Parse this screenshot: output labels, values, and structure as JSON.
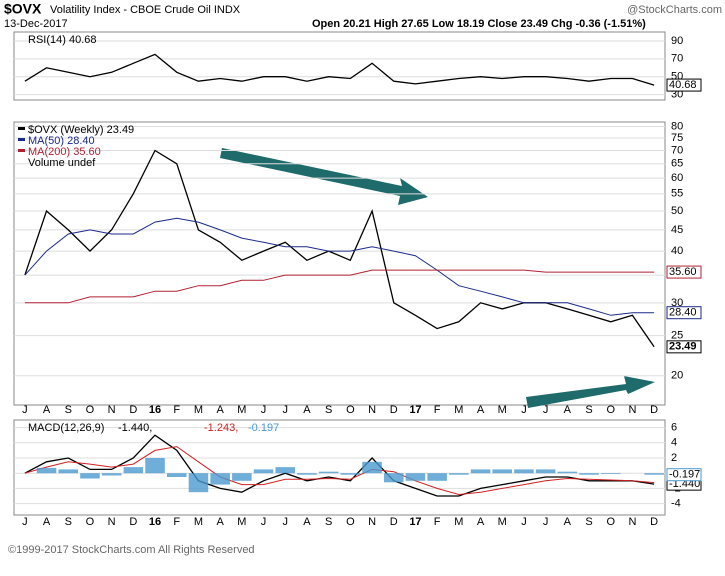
{
  "header": {
    "symbol": "$OVX",
    "name": "Volatility Index - CBOE Crude Oil INDX",
    "date": "13-Dec-2017",
    "quote": "Open 20.21  High 27.65  Low 18.19  Close 23.49  Chg -0.36 (-1.51%)",
    "source": "@StockCharts.com",
    "copyright": "©1999-2017 StockCharts.com All Rights Reserved"
  },
  "chart_data": [
    {
      "type": "line",
      "title": "RSI(14) 40.68",
      "categories": [
        "J",
        "A",
        "S",
        "O",
        "N",
        "D",
        "16",
        "F",
        "M",
        "A",
        "M",
        "J",
        "J",
        "A",
        "S",
        "O",
        "N",
        "D",
        "17",
        "F",
        "M",
        "A",
        "M",
        "J",
        "J",
        "A",
        "S",
        "O",
        "N",
        "D"
      ],
      "series": [
        {
          "name": "RSI(14)",
          "color": "#000000",
          "values": [
            45,
            60,
            55,
            50,
            55,
            65,
            75,
            55,
            45,
            48,
            45,
            50,
            50,
            45,
            50,
            48,
            65,
            45,
            42,
            45,
            48,
            50,
            48,
            50,
            50,
            48,
            45,
            48,
            48,
            40.68
          ]
        }
      ],
      "ylim": [
        24,
        100
      ],
      "yticks": [
        90,
        70,
        50,
        30
      ],
      "grid": true
    },
    {
      "type": "line",
      "log_scale": true,
      "categories": [
        "J",
        "A",
        "S",
        "O",
        "N",
        "D",
        "16",
        "F",
        "M",
        "A",
        "M",
        "J",
        "J",
        "A",
        "S",
        "O",
        "N",
        "D",
        "17",
        "F",
        "M",
        "A",
        "M",
        "J",
        "J",
        "A",
        "S",
        "O",
        "N",
        "D"
      ],
      "series": [
        {
          "name": "$OVX (Weekly) 23.49",
          "color": "#000000",
          "values": [
            35,
            50,
            45,
            40,
            45,
            55,
            70,
            65,
            45,
            42,
            38,
            40,
            42,
            38,
            40,
            38,
            50,
            30,
            28,
            26,
            27,
            30,
            29,
            30,
            30,
            29,
            28,
            27,
            28,
            23.49
          ]
        },
        {
          "name": "MA(50) 28.40",
          "color": "#1b2a8a",
          "last_label": "28.40",
          "values": [
            35,
            40,
            44,
            45,
            44,
            44,
            47,
            48,
            47,
            45,
            43,
            42,
            41,
            41,
            40,
            40,
            41,
            40,
            39,
            36,
            33,
            32,
            31,
            30,
            30,
            30,
            29,
            28,
            28.4,
            28.4
          ]
        },
        {
          "name": "MA(200) 35.60",
          "color": "#b22030",
          "last_label": "35.60",
          "values": [
            30,
            30,
            30,
            31,
            31,
            31,
            32,
            32,
            33,
            33,
            34,
            34,
            35,
            35,
            35,
            35,
            36,
            36,
            36,
            36,
            36,
            36,
            36,
            36,
            35.6,
            35.6,
            35.6,
            35.6,
            35.6,
            35.6
          ]
        }
      ],
      "legend_extra": "Volume undef",
      "ylim": [
        17,
        82
      ],
      "yticks": [
        20,
        25,
        30,
        35,
        40,
        45,
        50,
        55,
        60,
        65,
        70,
        75,
        80
      ],
      "grid": true
    },
    {
      "type": "macd",
      "title": "MACD(12,26,9)",
      "categories": [
        "J",
        "A",
        "S",
        "O",
        "N",
        "D",
        "16",
        "F",
        "M",
        "A",
        "M",
        "J",
        "J",
        "A",
        "S",
        "O",
        "N",
        "D",
        "17",
        "F",
        "M",
        "A",
        "M",
        "J",
        "J",
        "A",
        "S",
        "O",
        "N",
        "D"
      ],
      "series": [
        {
          "name": "-1.440,",
          "color": "#000000",
          "last_label": "-1.440",
          "values": [
            0,
            1.5,
            2,
            0.5,
            0.5,
            2,
            5,
            3,
            -1,
            -2,
            -2.5,
            -1,
            0,
            -1,
            -0.5,
            -1,
            2,
            -1,
            -2,
            -3,
            -3,
            -2,
            -1.5,
            -1,
            -0.5,
            -0.5,
            -1,
            -1,
            -1,
            -1.44
          ]
        },
        {
          "name": "-1.243,",
          "color": "#d02020",
          "values": [
            0,
            0.8,
            1.5,
            1.2,
            0.8,
            1.2,
            3,
            3.5,
            1.5,
            -0.5,
            -1.5,
            -1.5,
            -0.8,
            -0.8,
            -0.7,
            -0.8,
            0.5,
            0.2,
            -1,
            -2,
            -2.8,
            -2.5,
            -2,
            -1.5,
            -1,
            -0.7,
            -0.8,
            -0.9,
            -1,
            -1.243
          ]
        },
        {
          "name": "-0.197",
          "color": "#4a9ad0",
          "kind": "histogram",
          "values": [
            0,
            0.7,
            0.5,
            -0.7,
            -0.3,
            0.8,
            2,
            -0.5,
            -2.5,
            -1.5,
            -1,
            0.5,
            0.8,
            -0.2,
            0.2,
            -0.2,
            1.5,
            -1.2,
            -1,
            -1,
            -0.2,
            0.5,
            0.5,
            0.5,
            0.5,
            0.2,
            -0.2,
            -0.1,
            0,
            -0.197
          ]
        }
      ],
      "ylim": [
        -5.5,
        7
      ],
      "yticks": [
        6,
        4,
        2,
        0,
        -2,
        -4
      ],
      "grid": true
    }
  ]
}
